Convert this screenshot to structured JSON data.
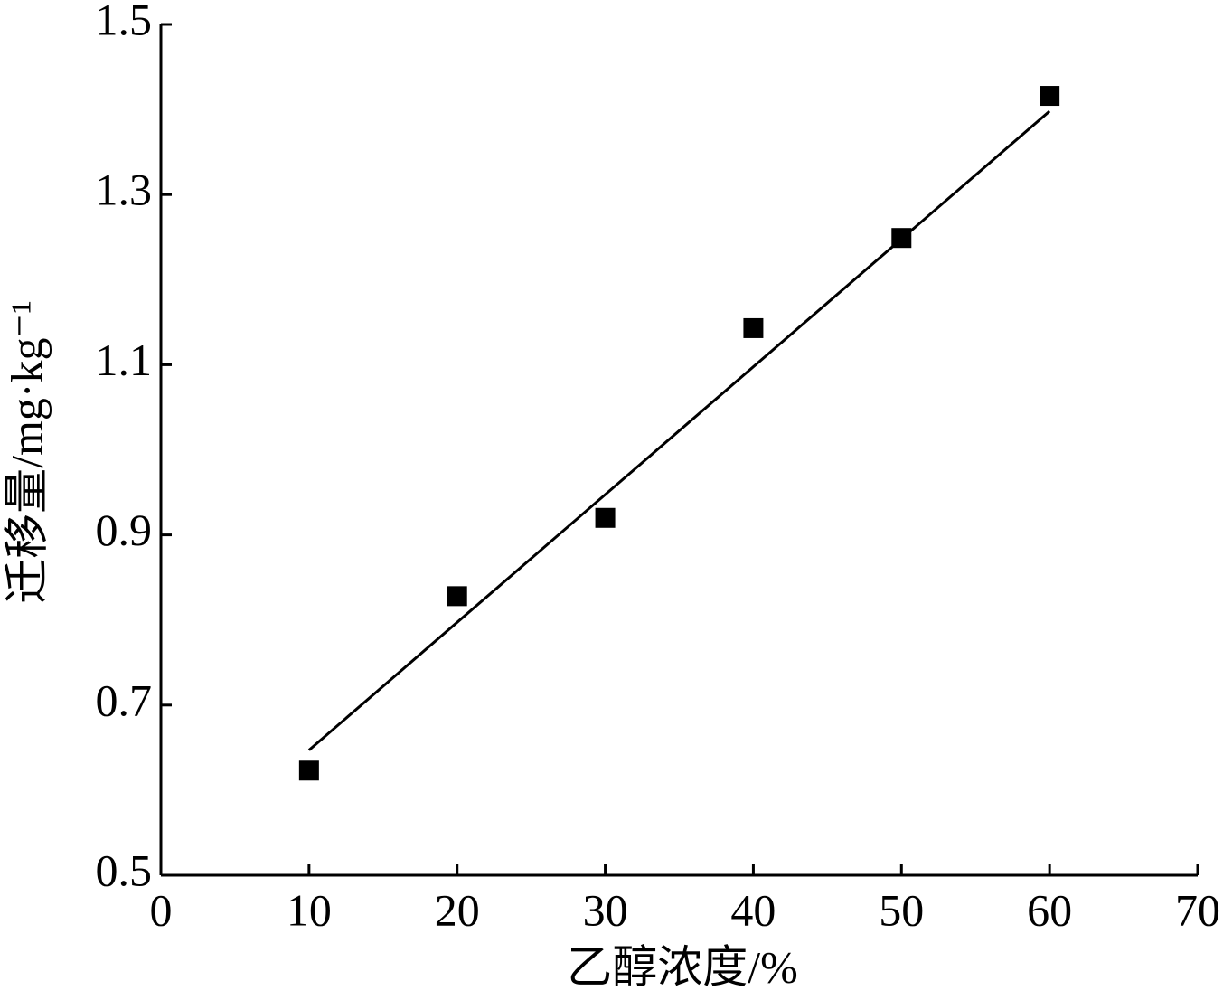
{
  "chart_data": {
    "type": "scatter",
    "xlabel": "乙醇浓度/%",
    "ylabel": "迁移量/mg·kg⁻¹",
    "x": [
      10,
      20,
      30,
      40,
      50,
      60
    ],
    "values": [
      0.623,
      0.828,
      0.92,
      1.143,
      1.249,
      1.416
    ],
    "color": "#000000",
    "fit": {
      "x": [
        10,
        60
      ],
      "values": [
        0.647,
        1.398
      ],
      "color": "#000000"
    },
    "xlim": [
      0,
      70
    ],
    "xticks": [
      0,
      10,
      20,
      30,
      40,
      50,
      60,
      70
    ],
    "ylim": [
      0.5,
      1.5
    ],
    "yticks": [
      0.5,
      0.7,
      0.9,
      1.1,
      1.3,
      1.5
    ],
    "grid": false
  }
}
